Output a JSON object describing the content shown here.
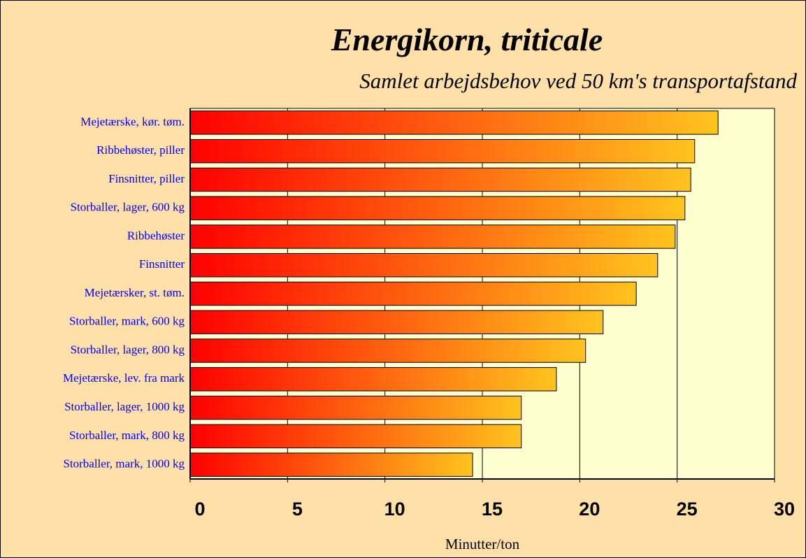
{
  "chart_data": {
    "type": "barh",
    "title": "Energikorn,  triticale",
    "subtitle": "Samlet arbejdsbehov ved 50 km's transportafstand",
    "x_label": "Minutter/ton",
    "categories": [
      "Mejetærske, kør. tøm.",
      "Ribbehøster, piller",
      "Finsnitter, piller",
      "Storballer, lager, 600 kg",
      "Ribbehøster",
      "Finsnitter",
      "Mejetærsker, st. tøm.",
      "Storballer, mark, 600 kg",
      "Storballer, lager, 800 kg",
      "Mejetærske, lev. fra mark",
      "Storballer, lager, 1000 kg",
      "Storballer, mark, 800 kg",
      "Storballer, mark, 1000 kg"
    ],
    "values": [
      27.1,
      25.9,
      25.7,
      25.4,
      24.9,
      24.0,
      22.9,
      21.2,
      20.3,
      18.8,
      17.0,
      17.0,
      14.5
    ],
    "xlim": [
      0,
      30
    ],
    "xticks": [
      0,
      5,
      10,
      15,
      20,
      25,
      30
    ],
    "grid": true
  }
}
